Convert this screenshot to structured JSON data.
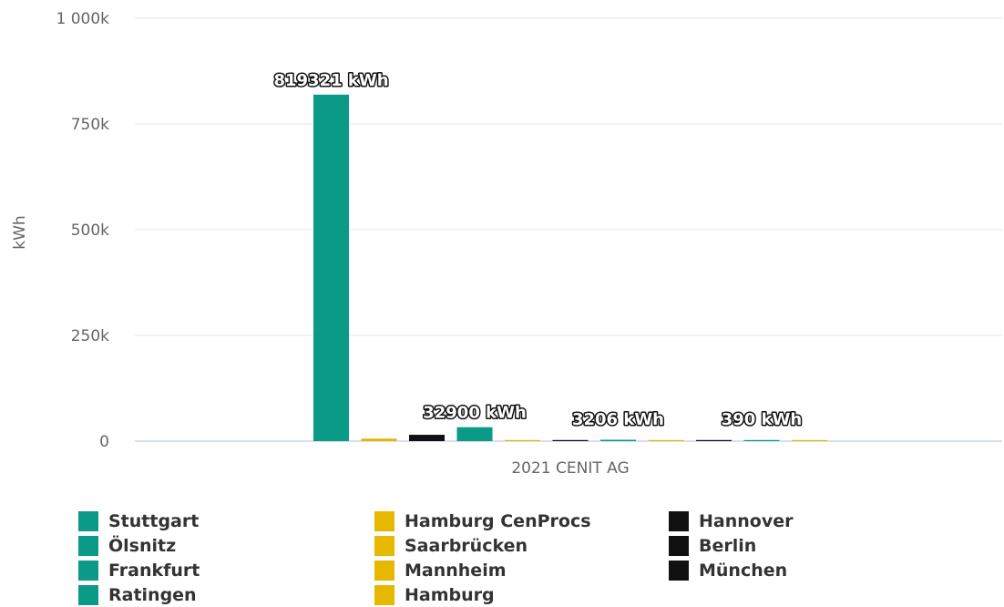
{
  "chart_data": {
    "type": "bar",
    "categories": [
      "2021 CENIT AG"
    ],
    "ylabel": "kWh",
    "xlabel": "",
    "ylim": [
      0,
      1000000
    ],
    "y_ticks": [
      {
        "value": 0,
        "label": "0"
      },
      {
        "value": 250000,
        "label": "250k"
      },
      {
        "value": 500000,
        "label": "500k"
      },
      {
        "value": 750000,
        "label": "750k"
      },
      {
        "value": 1000000,
        "label": "1 000k"
      }
    ],
    "grid": true,
    "legend_position": "bottom",
    "series": [
      {
        "name": "Stuttgart",
        "values": [
          819321
        ],
        "color": "#0a9a87",
        "label": "819321 kWh"
      },
      {
        "name": "Hamburg CenProcs",
        "values": [
          6000
        ],
        "color": "#e6b800",
        "label": ""
      },
      {
        "name": "Hannover",
        "values": [
          15000
        ],
        "color": "#111111",
        "label": ""
      },
      {
        "name": "Ölsnitz",
        "values": [
          32900
        ],
        "color": "#0a9a87",
        "label": "32900 kWh"
      },
      {
        "name": "Saarbrücken",
        "values": [
          1500
        ],
        "color": "#e6b800",
        "label": ""
      },
      {
        "name": "Berlin",
        "values": [
          800
        ],
        "color": "#111111",
        "label": ""
      },
      {
        "name": "Frankfurt",
        "values": [
          3206
        ],
        "color": "#0a9a87",
        "label": "3206 kWh"
      },
      {
        "name": "Mannheim",
        "values": [
          600
        ],
        "color": "#e6b800",
        "label": ""
      },
      {
        "name": "München",
        "values": [
          300
        ],
        "color": "#111111",
        "label": ""
      },
      {
        "name": "Ratingen",
        "values": [
          390
        ],
        "color": "#0a9a87",
        "label": "390 kWh"
      },
      {
        "name": "Hamburg",
        "values": [
          300
        ],
        "color": "#e6b800",
        "label": ""
      }
    ]
  },
  "legend": {
    "columns": [
      [
        {
          "name": "Stuttgart",
          "color": "#0a9a87"
        },
        {
          "name": "Ölsnitz",
          "color": "#0a9a87"
        },
        {
          "name": "Frankfurt",
          "color": "#0a9a87"
        },
        {
          "name": "Ratingen",
          "color": "#0a9a87"
        }
      ],
      [
        {
          "name": "Hamburg CenProcs",
          "color": "#e6b800"
        },
        {
          "name": "Saarbrücken",
          "color": "#e6b800"
        },
        {
          "name": "Mannheim",
          "color": "#e6b800"
        },
        {
          "name": "Hamburg",
          "color": "#e6b800"
        }
      ],
      [
        {
          "name": "Hannover",
          "color": "#111111"
        },
        {
          "name": "Berlin",
          "color": "#111111"
        },
        {
          "name": "München",
          "color": "#111111"
        }
      ]
    ]
  }
}
